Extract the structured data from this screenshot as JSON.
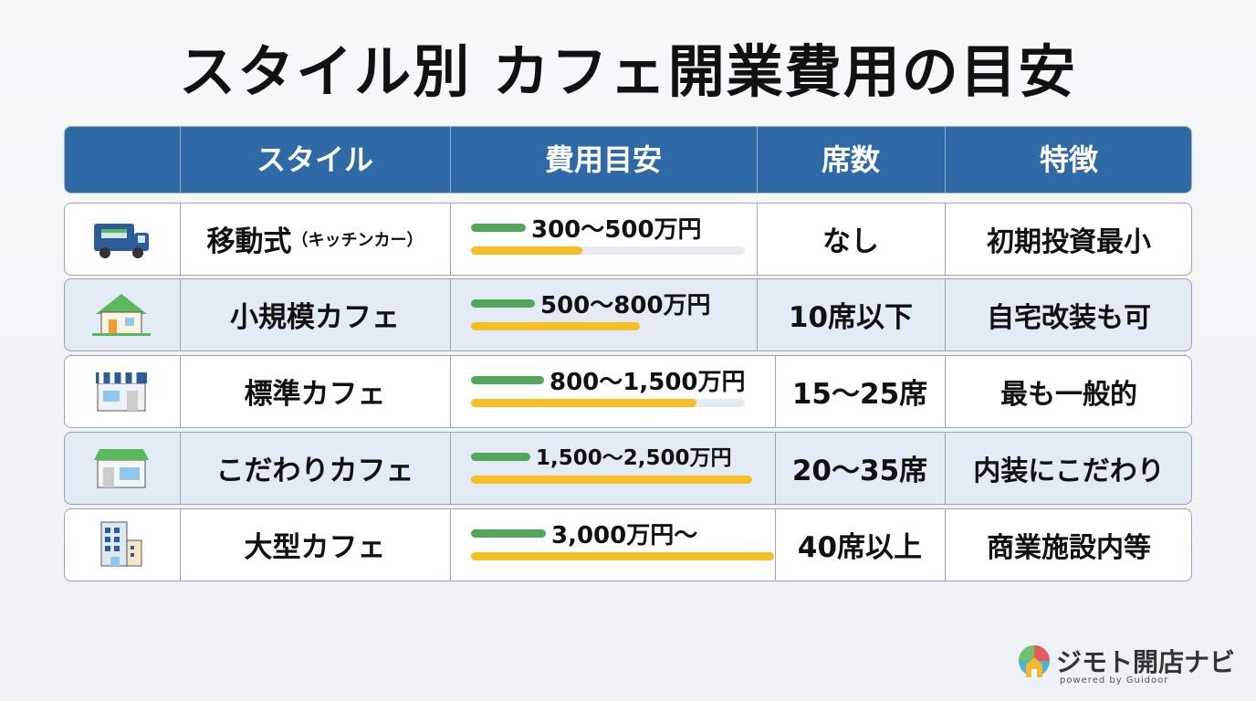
{
  "header": {
    "title": "スタイル別 カフェ開業費用の目安"
  },
  "table": {
    "columns": [
      "スタイル",
      "費用目安",
      "席数",
      "特徴"
    ],
    "rows": [
      {
        "style": "移動式",
        "note": "（キッチンカー）",
        "cost": "300〜500万円",
        "seats": "なし",
        "feature": "初期投資最小"
      },
      {
        "style": "小規模カフェ",
        "cost": "500〜800万円",
        "seats": "10席以下",
        "feature": "自宅改装も可"
      },
      {
        "style": "標準カフェ",
        "cost": "800〜1,500万円",
        "seats": "15〜25席",
        "feature": "最も一般的"
      },
      {
        "style": "こだわりカフェ",
        "cost": "1,500〜2,500万円",
        "seats": "20〜35席",
        "feature": "内装にこだわり"
      },
      {
        "style": "大型カフェ",
        "cost": "3,000万円〜",
        "seats": "40席以上",
        "feature": "商業施設内等"
      }
    ]
  },
  "footer": {
    "logo": "ジモト開店ナビ",
    "powered": "powered by Guidoor"
  }
}
